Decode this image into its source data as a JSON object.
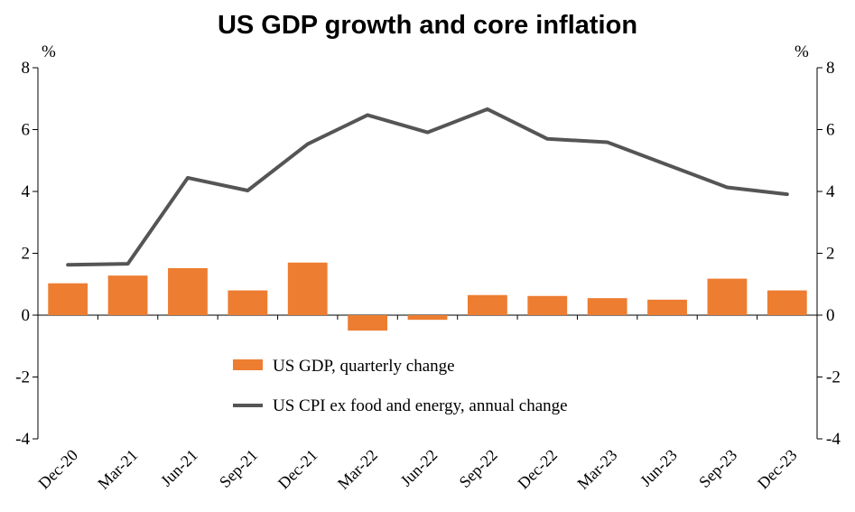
{
  "chart_data": {
    "type": "bar+line",
    "title": "US GDP growth and core inflation",
    "categories": [
      "Dec-20",
      "Mar-21",
      "Jun-21",
      "Sep-21",
      "Dec-21",
      "Mar-22",
      "Jun-22",
      "Sep-22",
      "Dec-22",
      "Mar-23",
      "Jun-23",
      "Sep-23",
      "Dec-23"
    ],
    "series": [
      {
        "name": "US GDP, quarterly change",
        "kind": "bar",
        "color": "#ED7D31",
        "values": [
          1.03,
          1.28,
          1.52,
          0.8,
          1.7,
          -0.5,
          -0.15,
          0.65,
          0.62,
          0.55,
          0.5,
          1.18,
          0.8
        ]
      },
      {
        "name": "US CPI ex food and energy, annual change",
        "kind": "line",
        "color": "#555555",
        "values": [
          1.63,
          1.66,
          4.44,
          4.03,
          5.53,
          6.47,
          5.91,
          6.66,
          5.7,
          5.59,
          4.86,
          4.13,
          3.91
        ]
      }
    ],
    "ylim": [
      -4,
      8
    ],
    "yticks": [
      -4,
      -2,
      0,
      2,
      4,
      6,
      8
    ],
    "ylabel_left": "%",
    "ylabel_right": "%",
    "legend_position": "lower-center inside plot"
  }
}
